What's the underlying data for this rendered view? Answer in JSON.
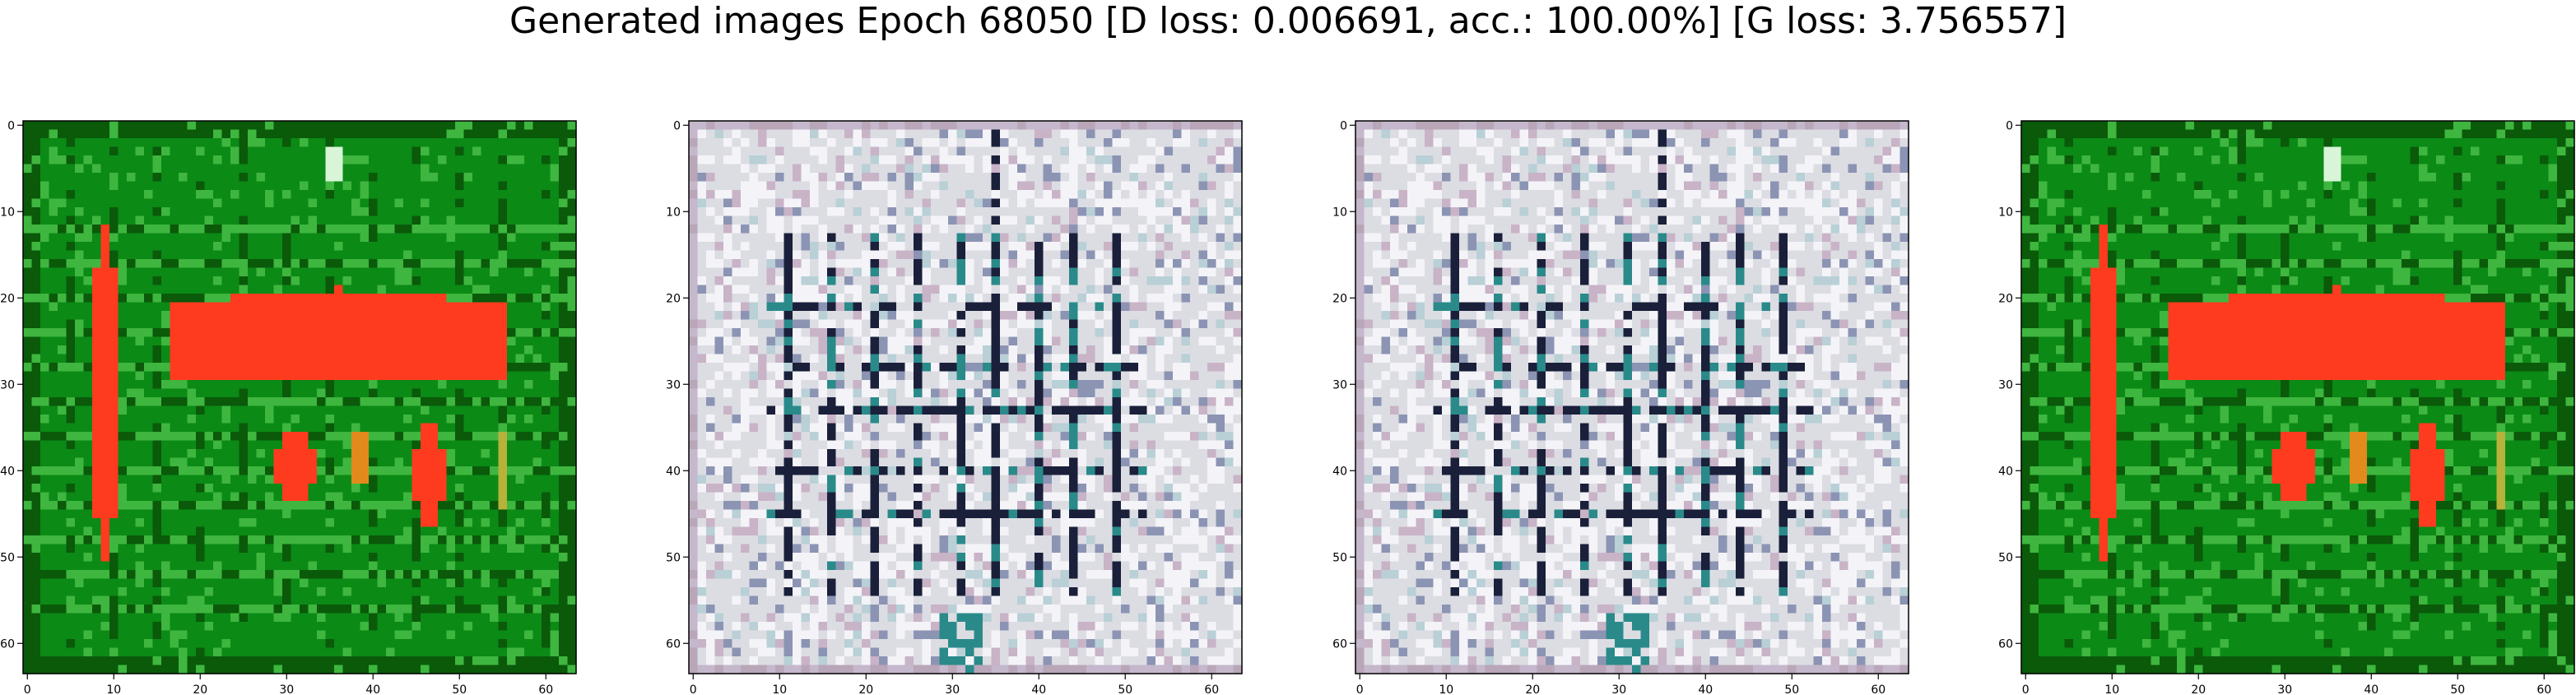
{
  "title": "Generated images Epoch 68050 [D loss: 0.006691, acc.: 100.00%] [G loss: 3.756557]",
  "chart_data": [
    {
      "type": "heatmap",
      "title": "",
      "image": "generated sample 1 (green field, red blobs)",
      "palette": {
        "background": "#0b8a16",
        "dark": "#0a5a0a",
        "light": "#3fb63f",
        "accent": "#ff3b1f",
        "highlight": "#d8f5d8"
      },
      "xlim": [
        0,
        63
      ],
      "ylim": [
        63,
        0
      ],
      "xticks": [
        "0",
        "10",
        "20",
        "30",
        "40",
        "50",
        "60"
      ],
      "yticks": [
        "0",
        "10",
        "20",
        "30",
        "40",
        "50",
        "60"
      ]
    },
    {
      "type": "heatmap",
      "title": "",
      "image": "generated sample 2 (grey grid pattern)",
      "palette": {
        "background": "#dcdde3",
        "dark": "#1a1f3a",
        "light": "#f4f4f8",
        "accent": "#2a8a8a",
        "highlight": "#ffffff"
      },
      "xlim": [
        0,
        63
      ],
      "ylim": [
        63,
        0
      ],
      "xticks": [
        "0",
        "10",
        "20",
        "30",
        "40",
        "50",
        "60"
      ],
      "yticks": [
        "0",
        "10",
        "20",
        "30",
        "40",
        "50",
        "60"
      ]
    },
    {
      "type": "heatmap",
      "title": "",
      "image": "generated sample 3 (grey grid pattern)",
      "palette": {
        "background": "#dcdde3",
        "dark": "#1a1f3a",
        "light": "#f4f4f8",
        "accent": "#2a8a8a",
        "highlight": "#ffffff"
      },
      "xlim": [
        0,
        63
      ],
      "ylim": [
        63,
        0
      ],
      "xticks": [
        "0",
        "10",
        "20",
        "30",
        "40",
        "50",
        "60"
      ],
      "yticks": [
        "0",
        "10",
        "20",
        "30",
        "40",
        "50",
        "60"
      ]
    },
    {
      "type": "heatmap",
      "title": "",
      "image": "generated sample 4 (green field, red blobs)",
      "palette": {
        "background": "#0b8a16",
        "dark": "#0a5a0a",
        "light": "#3fb63f",
        "accent": "#ff3b1f",
        "highlight": "#d8f5d8"
      },
      "xlim": [
        0,
        63
      ],
      "ylim": [
        63,
        0
      ],
      "xticks": [
        "0",
        "10",
        "20",
        "30",
        "40",
        "50",
        "60"
      ],
      "yticks": [
        "0",
        "10",
        "20",
        "30",
        "40",
        "50",
        "60"
      ]
    }
  ]
}
